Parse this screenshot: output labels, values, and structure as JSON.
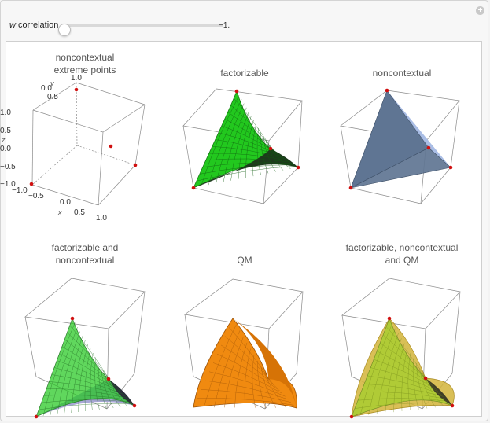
{
  "control": {
    "label_var": "w",
    "label_text": " correlation",
    "value_text": "−1.",
    "slider_fraction": 0.0
  },
  "icons": {
    "expand": "plus-icon"
  },
  "plots": [
    {
      "id": "noncontextual-extreme-points",
      "title_lines": [
        "noncontextual",
        "extreme points"
      ]
    },
    {
      "id": "factorizable",
      "title_lines": [
        "factorizable"
      ]
    },
    {
      "id": "noncontextual",
      "title_lines": [
        "noncontextual"
      ]
    },
    {
      "id": "factorizable-and-noncontextual",
      "title_lines": [
        "factorizable and",
        "noncontextual"
      ]
    },
    {
      "id": "qm",
      "title_lines": [
        "QM"
      ]
    },
    {
      "id": "factorizable-noncontextual-qm",
      "title_lines": [
        "factorizable, noncontextual",
        "and QM"
      ]
    }
  ],
  "axes": {
    "x_label": "x",
    "y_label": "y",
    "z_label": "z",
    "x_ticks": [
      "−1.0",
      "−0.5",
      "0.0",
      "0.5",
      "1.0"
    ],
    "y_ticks": [
      "0.0",
      "0.5",
      "1.0"
    ],
    "z_ticks": [
      "1.0",
      "0.5",
      "0.0",
      "−0.5",
      "−1.0"
    ]
  },
  "colors": {
    "extreme_point": "#d01010",
    "factorizable": "#22c81e",
    "noncontextual": "#5f7593",
    "noncontextual_light": "#a9bde5",
    "qm": "#f08a10",
    "intersection_purple": "#a8a7d6",
    "combined_yellow": "#d2b438"
  }
}
